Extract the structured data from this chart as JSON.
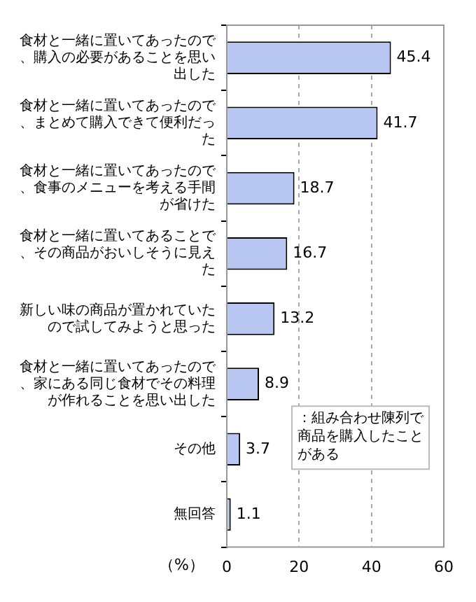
{
  "chart_data": {
    "type": "bar",
    "orientation": "horizontal",
    "categories": [
      "食材と一緒に置いてあったので、購入の必要があることを思い出した",
      "食材と一緒に置いてあったので、まとめて購入できて便利だった",
      "食材と一緒に置いてあったので、食事のメニューを考える手間が省けた",
      "食材と一緒に置いてあることで、その商品がおいしそうに見えた",
      "新しい味の商品が置かれていたので試してみようと思った",
      "食材と一緒に置いてあったので、家にある同じ食材でその料理が作れることを思い出した",
      "その他",
      "無回答"
    ],
    "series": [
      {
        "color": "#b8c6f2",
        "values": [
          45.4,
          41.7,
          18.7,
          16.7,
          13.2,
          8.9,
          3.7,
          1.1
        ]
      }
    ],
    "xlim": [
      0,
      60
    ],
    "xticks": [
      0,
      20,
      40,
      60
    ],
    "xlabel": "（%）",
    "grid": "x",
    "data_labels": true,
    "legend": false,
    "annotations": [
      "：組み合わせ陳列で商品を購入したことがある"
    ]
  }
}
